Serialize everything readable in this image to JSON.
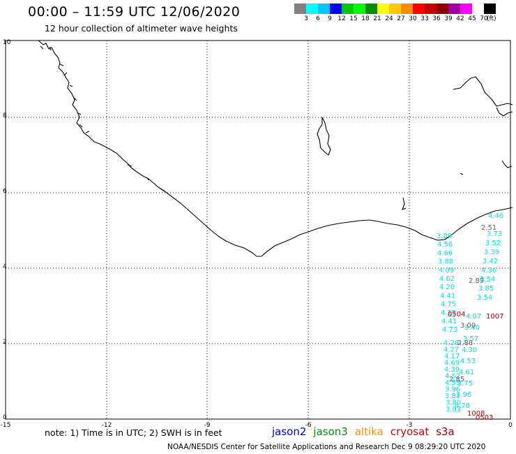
{
  "header": {
    "title": "00:00 – 11:59 UTC 12/06/2020",
    "subtitle": "12 hour collection of altimeter wave heights"
  },
  "legend": {
    "unit": "(ft)",
    "colors": [
      "#808080",
      "#00ffff",
      "#00c8ff",
      "#0000ff",
      "#00c800",
      "#00ff00",
      "#008c00",
      "#ffff00",
      "#ffc800",
      "#ff8c00",
      "#ff0000",
      "#c80000",
      "#8c0000",
      "#a000a0",
      "#ff00ff",
      "#ffffff",
      "#000000"
    ],
    "ticks": [
      "3",
      "6",
      "9",
      "12",
      "15",
      "18",
      "21",
      "24",
      "27",
      "30",
      "33",
      "36",
      "39",
      "42",
      "45",
      "70"
    ]
  },
  "axes": {
    "x_ticks": [
      "-15",
      "-12",
      "-9",
      "-6",
      "-3",
      "0"
    ],
    "y_ticks": [
      "0",
      "2",
      "4",
      "6",
      "8",
      "10"
    ]
  },
  "footer": {
    "note": "note: 1) Time is in UTC; 2) SWH is in feet",
    "missions": [
      {
        "name": "jason2",
        "color": "#0000cc"
      },
      {
        "name": "jason3",
        "color": "#008c00"
      },
      {
        "name": "altika",
        "color": "#ff8c00"
      },
      {
        "name": "cryosat",
        "color": "#cc0000"
      },
      {
        "name": "s3a",
        "color": "#8c0000"
      }
    ],
    "credit": "NOAA/NESDIS Center for Satellite Applications and Research   Dec  9 08:29:20 UTC 2020"
  },
  "observations": {
    "cyan_left": [
      "3.89",
      "4.56",
      "4.66",
      "3.88",
      "4.09",
      "4.62",
      "4.20",
      "4.41",
      "4.75",
      "4.15",
      "4.41",
      "4.73",
      "4.28",
      "4.27",
      "4.17",
      "4.69",
      "4.39",
      "4.52",
      "4.59",
      "3.96",
      "3.81",
      "3.80",
      "3.93"
    ],
    "cyan_right": [
      "4.46",
      "3.73",
      "3.52",
      "3.39",
      "3.42",
      "4.36",
      "3.54",
      "3.85",
      "3.54",
      "4.07",
      "3.40",
      "3.57",
      "4.30",
      "4.53",
      "4.61",
      "3.75",
      "3.96",
      "4.78"
    ],
    "gray": [
      "2.51",
      "2.89",
      "3.00",
      "2.88",
      "2.85"
    ],
    "red": [
      "0504",
      "1007",
      "1008",
      "0503"
    ]
  }
}
